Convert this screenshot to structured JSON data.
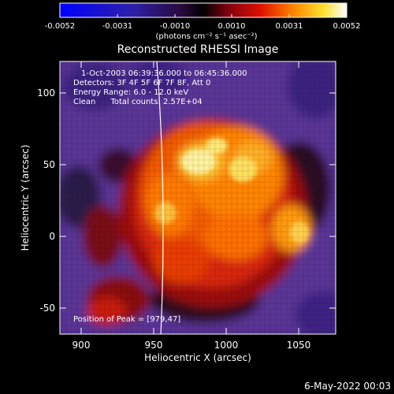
{
  "colorbar": {
    "ticks": [
      "-0.0052",
      "-0.0031",
      "-0.0010",
      "0.0010",
      "0.0031",
      "0.0052"
    ],
    "units": "(photons cm⁻² s⁻¹ asec⁻²)"
  },
  "image": {
    "title": "Reconstructed RHESSI Image",
    "info": [
      "1-Oct-2003 06:39:36.000 to 06:45:36.000",
      "Detectors: 3F 4F 5F 6F 7F 8F, Att 0",
      "Energy Range: 6.0 - 12.0 keV",
      "Clean      Total counts: 2.57E+04"
    ],
    "peak_label": "Position of Peak = [979,47]",
    "xlabel": "Heliocentric X (arcsec)",
    "ylabel": "Heliocentric Y (arcsec)",
    "xticks": [
      "900",
      "950",
      "1000",
      "1050"
    ],
    "yticks": [
      "100",
      "50",
      "0",
      "-50"
    ]
  },
  "footer": {
    "date": "6-May-2022 00:03"
  },
  "colors": {
    "background": "#000000",
    "limb": "#ffffff"
  }
}
